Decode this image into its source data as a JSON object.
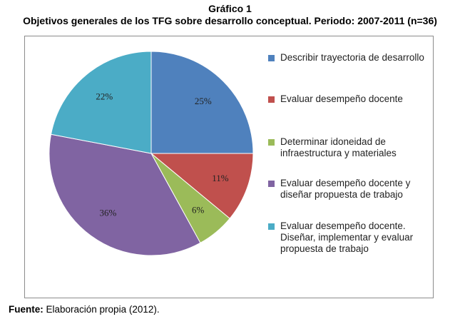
{
  "title": "Gráfico 1",
  "subtitle": "Objetivos generales de los TFG sobre desarrollo conceptual. Periodo: 2007-2011 (n=36)",
  "source": {
    "label": "Fuente:",
    "text": " Elaboración propia (2012)."
  },
  "chart_data": {
    "type": "pie",
    "slices": [
      {
        "label": "Describir trayectoria de desarrollo",
        "value": 25,
        "display": "25%",
        "color": "#4f81bd"
      },
      {
        "label": "Evaluar desempeño docente",
        "value": 11,
        "display": "11%",
        "color": "#c0504d"
      },
      {
        "label": "Determinar idoneidad de infraestructura y materiales",
        "value": 6,
        "display": "6%",
        "color": "#9bbb59"
      },
      {
        "label": "Evaluar desempeño docente y diseñar propuesta de trabajo",
        "value": 36,
        "display": "36%",
        "color": "#8064a2"
      },
      {
        "label": "Evaluar desempeño docente. Diseñar, implementar y evaluar propuesta de trabajo",
        "value": 22,
        "display": "22%",
        "color": "#4bacc6"
      }
    ],
    "start_angle": "12 o'clock",
    "direction": "clockwise",
    "legend_position": "right"
  }
}
